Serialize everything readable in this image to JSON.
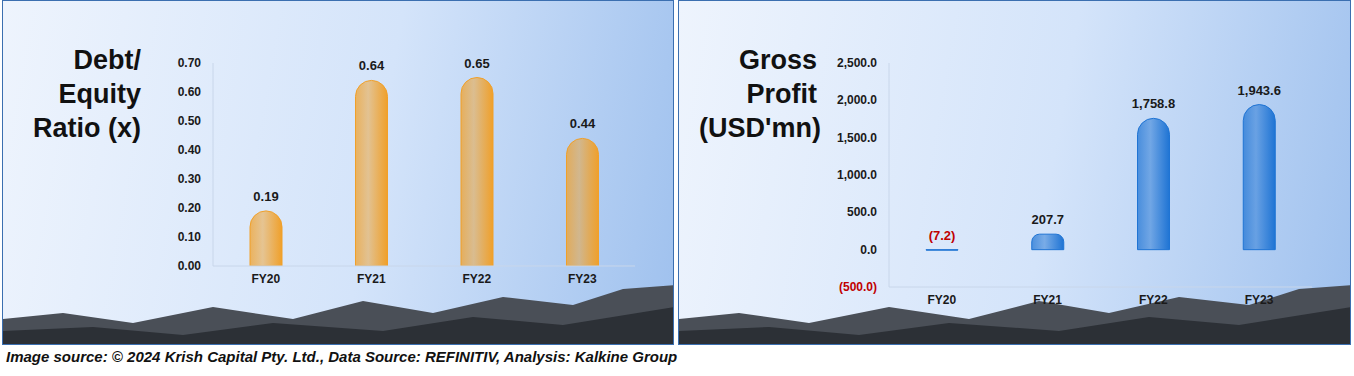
{
  "caption": "Image source: © 2024 Krish Capital Pty. Ltd., Data Source: REFINITIV, Analysis: Kalkine Group",
  "chart_data": [
    {
      "type": "bar",
      "title": "Debt/\nEquity\nRatio (x)",
      "categories": [
        "FY20",
        "FY21",
        "FY22",
        "FY23"
      ],
      "values": [
        0.19,
        0.64,
        0.65,
        0.44
      ],
      "color": "#f0a02a",
      "ylim": [
        0,
        0.7
      ],
      "yticks": [
        {
          "value": 0,
          "label": "0.00"
        },
        {
          "value": 0.1,
          "label": "0.10"
        },
        {
          "value": 0.2,
          "label": "0.20"
        },
        {
          "value": 0.3,
          "label": "0.30"
        },
        {
          "value": 0.4,
          "label": "0.40"
        },
        {
          "value": 0.5,
          "label": "0.50"
        },
        {
          "value": 0.6,
          "label": "0.60"
        },
        {
          "value": 0.7,
          "label": "0.70"
        }
      ],
      "grid": false,
      "data_labels": true
    },
    {
      "type": "bar",
      "title": "Gross\nProfit\n(USD'mn)",
      "categories": [
        "FY20",
        "FY21",
        "FY22",
        "FY23"
      ],
      "values": [
        -7.2,
        207.7,
        1758.8,
        1943.6
      ],
      "value_labels": [
        "(7.2)",
        "207.7",
        "1,758.8",
        "1,943.6"
      ],
      "color": "#1f74d4",
      "ylim": [
        -500,
        2500
      ],
      "yticks": [
        {
          "value": -500,
          "label": "(500.0)"
        },
        {
          "value": 0,
          "label": "0.0"
        },
        {
          "value": 500,
          "label": "500.0"
        },
        {
          "value": 1000,
          "label": "1,000.0"
        },
        {
          "value": 1500,
          "label": "1,500.0"
        },
        {
          "value": 2000,
          "label": "2,000.0"
        },
        {
          "value": 2500,
          "label": "2,500.0"
        }
      ],
      "grid": false,
      "data_labels": true
    }
  ]
}
